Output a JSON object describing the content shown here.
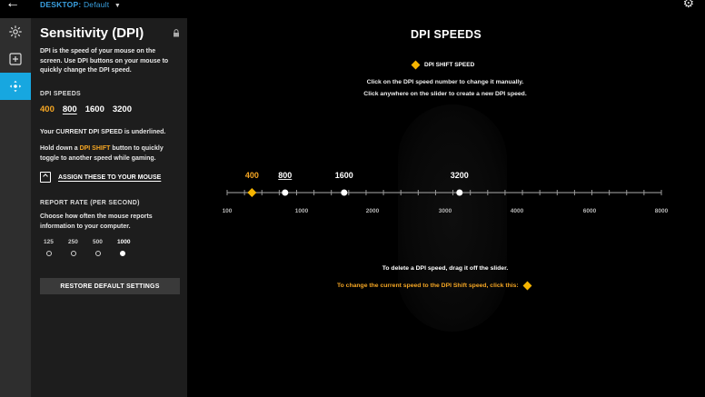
{
  "topbar": {
    "back_glyph": "←",
    "profile_label": "DESKTOP:",
    "profile_value": "Default",
    "settings_icon": "gear-icon"
  },
  "iconbar": {
    "items": [
      {
        "icon": "lighting-icon",
        "active": false
      },
      {
        "icon": "assignments-icon",
        "active": false
      },
      {
        "icon": "sensitivity-icon",
        "active": true
      }
    ]
  },
  "panel": {
    "title": "Sensitivity (DPI)",
    "description": "DPI is the speed of your mouse on the screen. Use DPI buttons on your mouse to quickly change the DPI speed.",
    "dpi_speeds_label": "DPI SPEEDS",
    "dpi_values": [
      "400",
      "800",
      "1600",
      "3200"
    ],
    "current_note": "Your CURRENT DPI SPEED is underlined.",
    "shift_note_pre": "Hold down a ",
    "shift_note_hl": "DPI SHIFT",
    "shift_note_post": " button to quickly toggle to another speed while gaming.",
    "assign_label": "ASSIGN THESE TO YOUR MOUSE",
    "report_rate_label": "REPORT RATE (PER SECOND)",
    "report_rate_desc": "Choose how often the mouse reports information to your computer.",
    "report_rates": [
      "125",
      "250",
      "500",
      "1000"
    ],
    "selected_report_rate": "1000",
    "restore_label": "RESTORE DEFAULT SETTINGS"
  },
  "main": {
    "title": "DPI SPEEDS",
    "legend_label": "DPI SHIFT SPEED",
    "instruction_1": "Click on the DPI speed number to change it manually.",
    "instruction_2": "Click anywhere on the slider to create a new DPI speed.",
    "footer_1": "To delete a DPI speed, drag it off the slider.",
    "footer_2": "To change the current speed to the DPI Shift speed, click this:"
  },
  "slider": {
    "min": 100,
    "max": 8000,
    "axis_labels": [
      100,
      1000,
      2000,
      3000,
      4000,
      6000,
      8000
    ],
    "stops": [
      {
        "value": 400,
        "label": "400",
        "shift": true,
        "current": false
      },
      {
        "value": 800,
        "label": "800",
        "shift": false,
        "current": true
      },
      {
        "value": 1600,
        "label": "1600",
        "shift": false,
        "current": false
      },
      {
        "value": 3200,
        "label": "3200",
        "shift": false,
        "current": false
      }
    ]
  },
  "colors": {
    "accent_blue": "#17a7e0",
    "shift_orange": "#f5a623",
    "panel_bg": "#1d1d1d",
    "iconbar_bg": "#2e2e2e"
  }
}
